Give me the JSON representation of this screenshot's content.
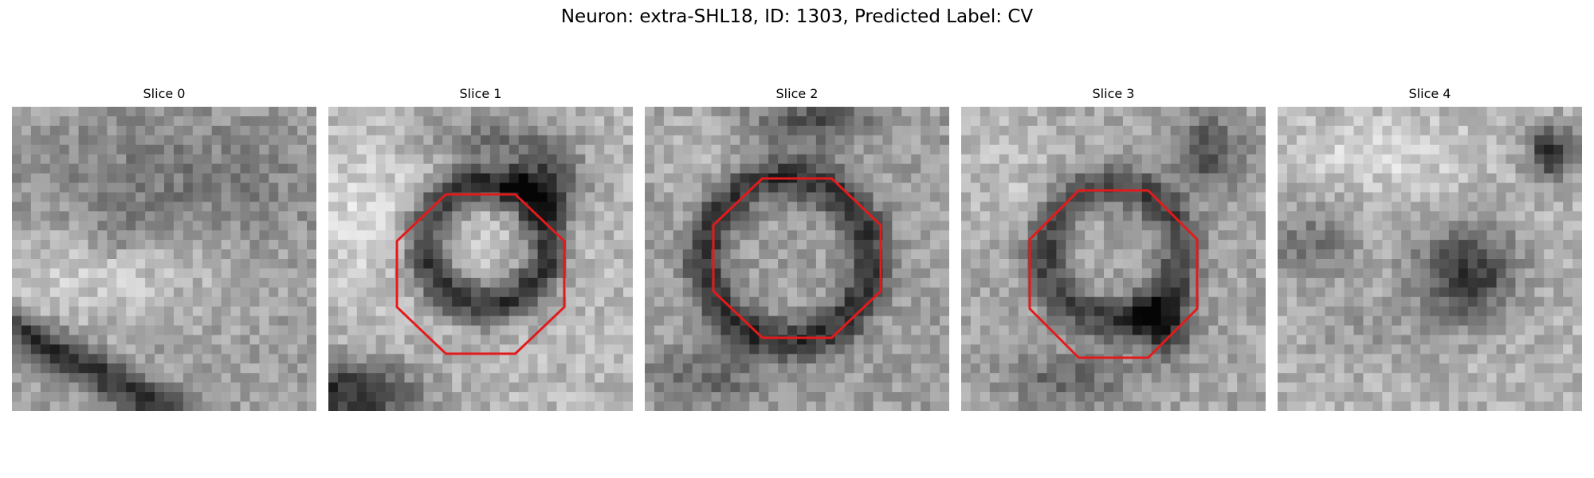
{
  "figure": {
    "title": "Neuron: extra-SHL18, ID: 1303, Predicted Label: CV"
  },
  "panels": [
    {
      "title": "Slice 0",
      "outline": false,
      "image_description": "grayscale electron microscopy crop, light band with dark diagonal streak at bottom-left",
      "icon": "em-slice-image"
    },
    {
      "title": "Slice 1",
      "outline": true,
      "image_description": "grayscale crop with dark ring around lighter vesicle, red octagon outline",
      "icon": "em-slice-image"
    },
    {
      "title": "Slice 2",
      "outline": true,
      "image_description": "grayscale crop with dark ring around vesicle, red octagon outline",
      "icon": "em-slice-image"
    },
    {
      "title": "Slice 3",
      "outline": true,
      "image_description": "grayscale crop with dark ring around vesicle, red octagon outline",
      "icon": "em-slice-image"
    },
    {
      "title": "Slice 4",
      "outline": false,
      "image_description": "grayscale crop with dark blob at center-right",
      "icon": "em-slice-image"
    }
  ],
  "colors": {
    "outline": "#e31a1c",
    "background": "#ffffff"
  }
}
